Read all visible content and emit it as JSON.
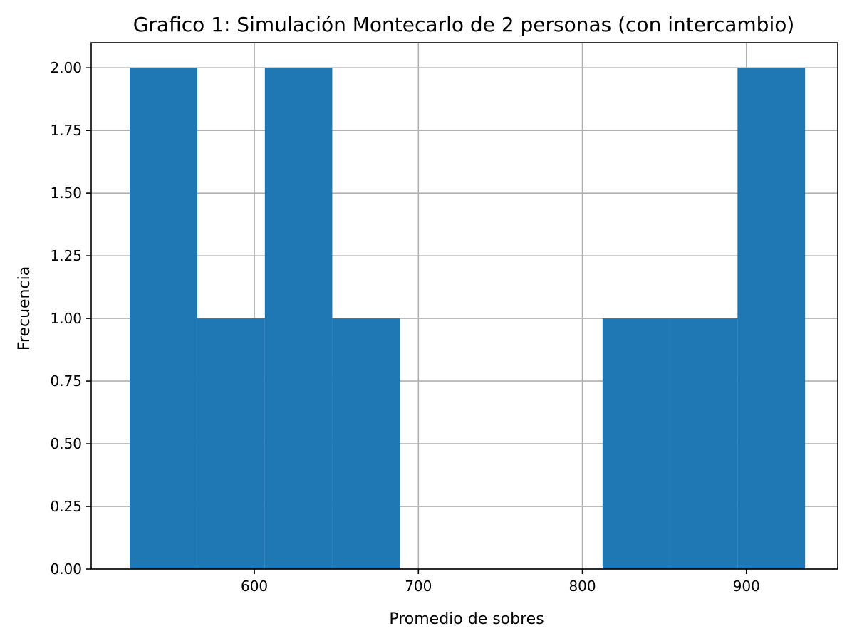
{
  "chart_data": {
    "type": "bar",
    "title": "Grafico 1: Simulación Montecarlo de 2 personas (con intercambio)",
    "xlabel": "Promedio de sobres",
    "ylabel": "Frecuencia",
    "bar_color": "#1f77b4",
    "grid": true,
    "xlim": [
      500.5,
      955.7
    ],
    "ylim": [
      0,
      2.1
    ],
    "xticks": [
      600,
      700,
      800,
      900
    ],
    "xtick_labels": [
      "600",
      "700",
      "800",
      "900"
    ],
    "yticks": [
      0,
      0.25,
      0.5,
      0.75,
      1.0,
      1.25,
      1.5,
      1.75,
      2.0
    ],
    "ytick_labels": [
      "0.00",
      "0.25",
      "0.50",
      "0.75",
      "1.00",
      "1.25",
      "1.50",
      "1.75",
      "2.00"
    ],
    "bins": [
      {
        "x0": 524.0,
        "x1": 565.2,
        "count": 2
      },
      {
        "x0": 565.2,
        "x1": 606.4,
        "count": 1
      },
      {
        "x0": 606.4,
        "x1": 647.5,
        "count": 2
      },
      {
        "x0": 647.5,
        "x1": 688.7,
        "count": 1
      },
      {
        "x0": 688.7,
        "x1": 729.9,
        "count": 0
      },
      {
        "x0": 729.9,
        "x1": 771.1,
        "count": 0
      },
      {
        "x0": 771.1,
        "x1": 812.3,
        "count": 0
      },
      {
        "x0": 812.3,
        "x1": 853.4,
        "count": 1
      },
      {
        "x0": 853.4,
        "x1": 894.6,
        "count": 1
      },
      {
        "x0": 894.6,
        "x1": 935.8,
        "count": 2
      }
    ]
  }
}
